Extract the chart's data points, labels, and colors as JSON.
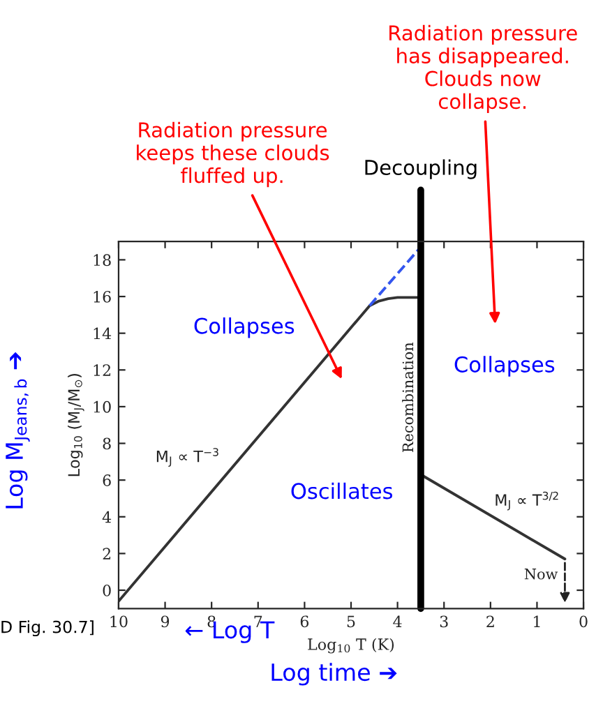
{
  "chart_data": {
    "type": "line",
    "xlabel": "Log$_{10}$ T (K)",
    "ylabel": "Log$_{10}$ (M$_{J}$/M$_{⊙}$)",
    "xlim": [
      10,
      0
    ],
    "xticks": [
      10,
      9,
      8,
      7,
      6,
      5,
      4,
      3,
      2,
      1,
      0
    ],
    "ylim": [
      -1,
      19
    ],
    "yticks": [
      0,
      2,
      4,
      6,
      8,
      10,
      12,
      14,
      16,
      18
    ],
    "grid": false,
    "legend": false,
    "series": [
      {
        "color": "#333333",
        "line_style": "solid",
        "x": [
          10,
          4.6,
          4.4,
          4.2,
          4.0,
          3.5,
          3.5,
          0.4
        ],
        "values": [
          -0.6,
          15.5,
          15.75,
          15.88,
          15.95,
          15.95,
          6.3,
          1.7
        ]
      },
      {
        "color": "#3355ee",
        "line_style": "dashed",
        "x": [
          4.6,
          3.5
        ],
        "values": [
          15.5,
          18.7
        ]
      }
    ],
    "ref_lines": [
      {
        "axis": "x",
        "value": 3.5,
        "label": "Decoupling",
        "color": "#000000"
      }
    ],
    "annotations": [
      "Radiation pressure\nkeeps these clouds\nfluffed up.",
      "Radiation pressure\nhas disappeared.\nClouds now\ncollapse.",
      "Collapses",
      "Collapses",
      "Oscillates",
      {
        "text": "M$_{J}$ ∝ T$^{−3}$",
        "x": 7.6,
        "y": 6.6
      },
      {
        "text": "M$_{J}$ ∝ T$^{3/2}$",
        "x": 1.8,
        "y": 3.8
      },
      "Recombination",
      {
        "text": "Now",
        "x": 0.4,
        "y": 1.7
      },
      "Log M$_{Jeans,b}$ ➔",
      "← Log T",
      "Log time ➔",
      "D Fig. 30.7]"
    ]
  }
}
